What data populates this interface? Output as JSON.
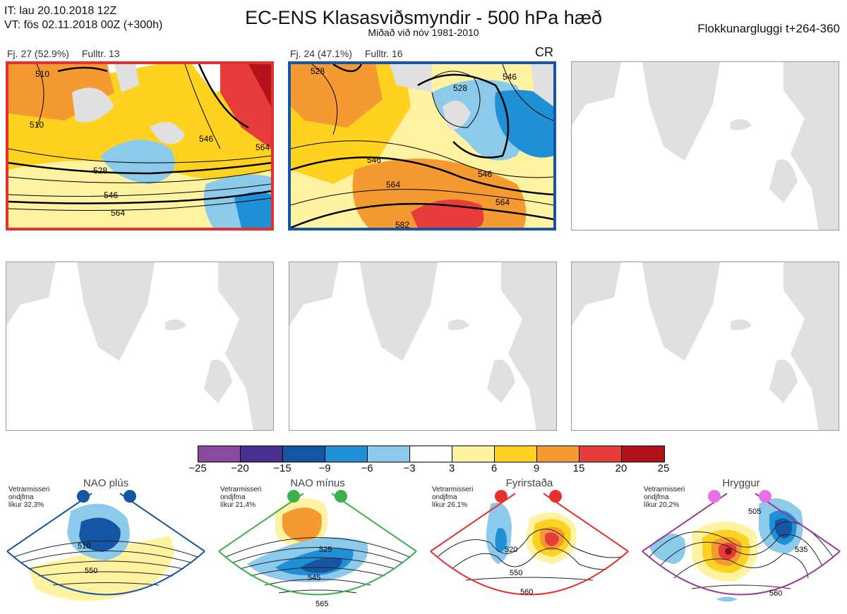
{
  "header": {
    "it": "IT: lau 20.10.2018 12Z",
    "vt": "VT: fös 02.11.2018 00Z  (+300h)",
    "title": "EC-ENS Klasasviðsmyndir - 500 hPa hæð",
    "subtitle": "Miðað við nóv 1981-2010",
    "window": "Flokkunargluggi t+264-360"
  },
  "clusters": [
    {
      "freq": "Fj. 27 (52.9%)",
      "rep": "Fulltr. 13",
      "tag": "",
      "color": "#e53030",
      "contour_labels": [
        "510",
        "510",
        "528",
        "546",
        "546",
        "564",
        "564"
      ]
    },
    {
      "freq": "Fj. 24 (47.1%)",
      "rep": "Fulltr. 16",
      "tag": "CR",
      "color": "#1556a4",
      "contour_labels": [
        "528",
        "528",
        "546",
        "546",
        "564",
        "564",
        "582",
        "546"
      ]
    }
  ],
  "colorbar": {
    "colors": [
      "#8c4a9e",
      "#4a2f8f",
      "#1556a4",
      "#1f8fd6",
      "#8ccaeb",
      "#ffffff",
      "#fff2a0",
      "#ffd21f",
      "#f59a30",
      "#e83c3c",
      "#b3121a"
    ],
    "labels": [
      "−25",
      "−20",
      "−15",
      "−9",
      "−6",
      "−3",
      "3",
      "6",
      "9",
      "15",
      "20",
      "25"
    ]
  },
  "regimes": [
    {
      "name": "NAO plús",
      "season": "Vetrarmisseri",
      "pattern": "ondjfma",
      "prob": "líkur 32,3%",
      "color": "#1556a4",
      "contours": [
        "510",
        "550"
      ]
    },
    {
      "name": "NAO mínus",
      "season": "Vetrarmisseri",
      "pattern": "ondjfma",
      "prob": "líkur 21,4%",
      "color": "#3cb04a",
      "contours": [
        "525",
        "545",
        "565"
      ]
    },
    {
      "name": "Fyrirstaða",
      "season": "Vetrarmisseri",
      "pattern": "ondjfma",
      "prob": "líkur 26,1%",
      "color": "#e83030",
      "contours": [
        "520",
        "550",
        "560"
      ]
    },
    {
      "name": "Hryggur",
      "season": "Vetrarmisseri",
      "pattern": "ondjfma",
      "prob": "líkur 20,2%",
      "color": "#e870e8",
      "contours": [
        "505",
        "535",
        "560"
      ]
    }
  ]
}
